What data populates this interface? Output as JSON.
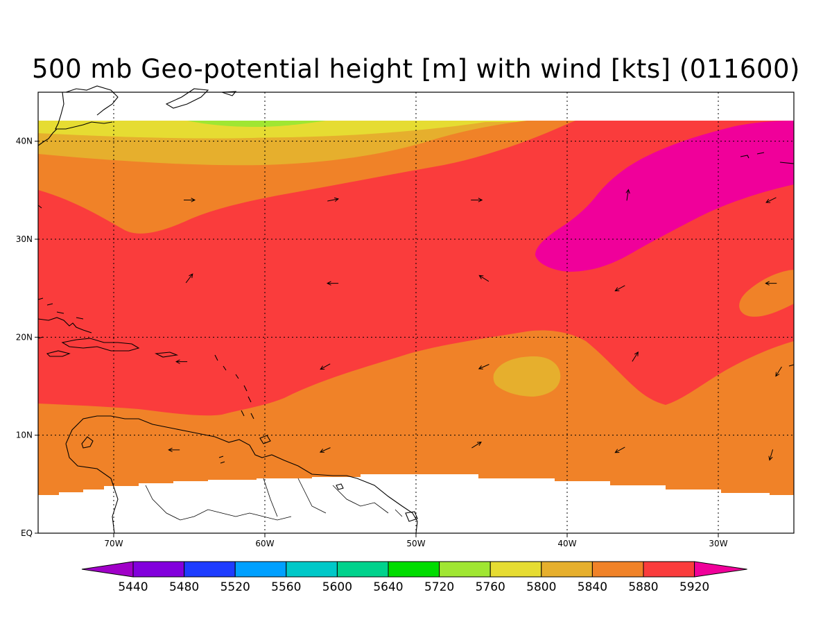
{
  "title": "500 mb Geo-potential height [m] with wind [kts] (011600)",
  "map": {
    "lon_range": [
      -75,
      -25
    ],
    "lat_range": [
      0,
      45
    ],
    "lon_ticks": [
      {
        "lon": -70,
        "label": "70W"
      },
      {
        "lon": -60,
        "label": "60W"
      },
      {
        "lon": -50,
        "label": "50W"
      },
      {
        "lon": -40,
        "label": "40W"
      },
      {
        "lon": -30,
        "label": "30W"
      }
    ],
    "lat_ticks": [
      {
        "lat": 0,
        "label": "EQ"
      },
      {
        "lat": 10,
        "label": "10N"
      },
      {
        "lat": 20,
        "label": "20N"
      },
      {
        "lat": 30,
        "label": "30N"
      },
      {
        "lat": 40,
        "label": "40N"
      }
    ],
    "grid": "dotted"
  },
  "colorbar": {
    "arrows": {
      "left": "#a000c8",
      "right": "#f0009a"
    },
    "colors": [
      "#8200dc",
      "#1e3cff",
      "#00a0ff",
      "#00c8c8",
      "#00d28c",
      "#00dc00",
      "#a0e632",
      "#e6dc32",
      "#e6af2d",
      "#f08228",
      "#fa3c3c"
    ],
    "labels": [
      "5440",
      "5480",
      "5520",
      "5560",
      "5600",
      "5640",
      "5720",
      "5760",
      "5800",
      "5840",
      "5880",
      "5920"
    ]
  },
  "contour_colors": {
    "green": "#a0e632",
    "yellow": "#e6dc32",
    "gold": "#e6af2d",
    "orange": "#f08228",
    "red": "#fa3c3c",
    "magenta": "#f0009a"
  },
  "wind_vectors": [
    {
      "lon": -65.0,
      "lat": 34.0,
      "u": 1.0,
      "v": 0.0
    },
    {
      "lon": -55.5,
      "lat": 34.0,
      "u": 1.0,
      "v": 0.2
    },
    {
      "lon": -46.0,
      "lat": 34.0,
      "u": 1.0,
      "v": 0.0
    },
    {
      "lon": -36.0,
      "lat": 34.5,
      "u": 0.15,
      "v": 1.0
    },
    {
      "lon": -26.5,
      "lat": 34.0,
      "u": -1.0,
      "v": -0.5
    },
    {
      "lon": -65.0,
      "lat": 26.0,
      "u": 0.6,
      "v": 0.8
    },
    {
      "lon": -55.5,
      "lat": 25.5,
      "u": -1.0,
      "v": 0.0
    },
    {
      "lon": -45.5,
      "lat": 26.0,
      "u": -0.8,
      "v": 0.5
    },
    {
      "lon": -36.5,
      "lat": 25.0,
      "u": -0.9,
      "v": -0.5
    },
    {
      "lon": -26.5,
      "lat": 25.5,
      "u": -1.0,
      "v": 0.0
    },
    {
      "lon": -65.5,
      "lat": 17.5,
      "u": -1.0,
      "v": 0.0
    },
    {
      "lon": -56.0,
      "lat": 17.0,
      "u": -0.9,
      "v": -0.5
    },
    {
      "lon": -45.5,
      "lat": 17.0,
      "u": -0.9,
      "v": -0.4
    },
    {
      "lon": -35.5,
      "lat": 18.0,
      "u": 0.5,
      "v": 0.8
    },
    {
      "lon": -26.0,
      "lat": 16.5,
      "u": -0.5,
      "v": -0.8
    },
    {
      "lon": -66.0,
      "lat": 8.5,
      "u": -1.0,
      "v": 0.0
    },
    {
      "lon": -56.0,
      "lat": 8.5,
      "u": -0.9,
      "v": -0.4
    },
    {
      "lon": -46.0,
      "lat": 9.0,
      "u": 0.8,
      "v": 0.5
    },
    {
      "lon": -36.5,
      "lat": 8.5,
      "u": -0.9,
      "v": -0.5
    },
    {
      "lon": -26.5,
      "lat": 8.0,
      "u": -0.3,
      "v": -1.0
    }
  ]
}
